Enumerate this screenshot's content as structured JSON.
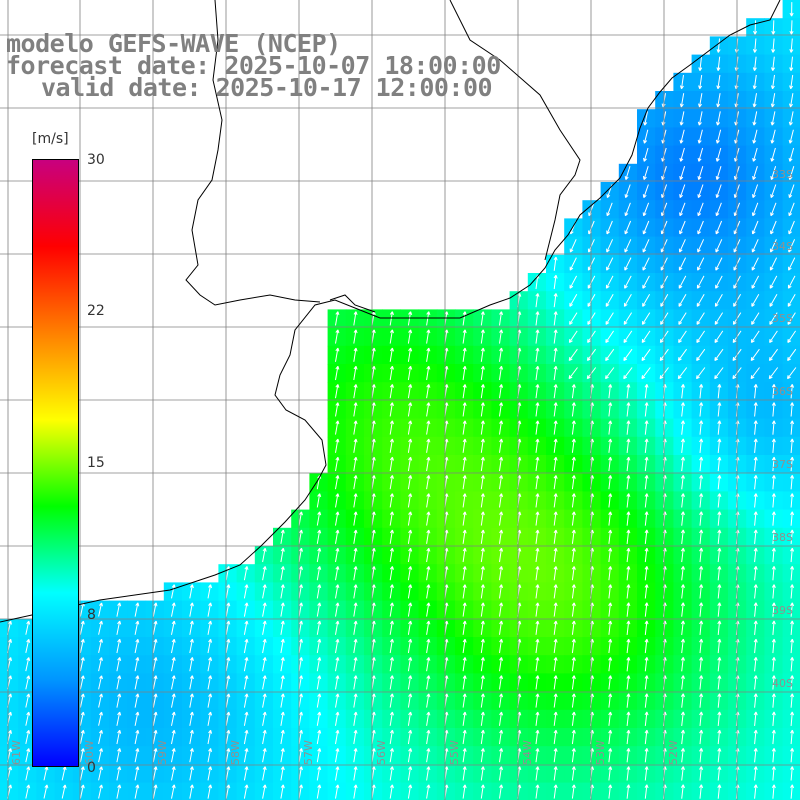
{
  "title": {
    "model": "modelo GEFS-WAVE (NCEP)",
    "forecast": "forecast date: 2025-10-07 18:00:00",
    "valid": "valid date: 2025-10-17 12:00:00"
  },
  "legend": {
    "unit": "[m/s]",
    "ticks": [
      "30",
      "22",
      "15",
      "8",
      "0"
    ],
    "tick_values": [
      30,
      22,
      15,
      8,
      0
    ],
    "range": [
      0,
      30
    ],
    "colors": [
      "#0000ff",
      "#0096ff",
      "#00ffff",
      "#00ff00",
      "#ffff00",
      "#ff8000",
      "#ff0000",
      "#c8007f"
    ]
  },
  "map": {
    "lat_labels": [
      "33S",
      "34S",
      "35S",
      "36S",
      "37S",
      "38S",
      "39S",
      "40S"
    ],
    "lon_labels": [
      "61W",
      "60W",
      "59W",
      "58W",
      "57W",
      "56W",
      "55W",
      "54W",
      "53W",
      "52W"
    ],
    "grid_color": "#808080",
    "land_color": "#ffffff"
  }
}
